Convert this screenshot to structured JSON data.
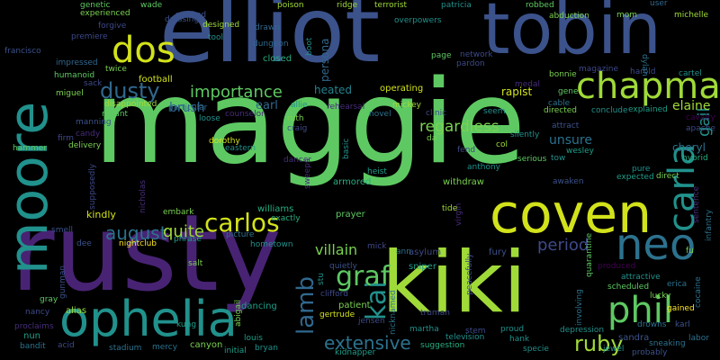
{
  "words": [
    {
      "text": "maggie",
      "color": "#5ec962"
    },
    {
      "text": "elliot",
      "color": "#3b528b"
    },
    {
      "text": "rusty",
      "color": "#482374"
    },
    {
      "text": "tobin",
      "color": "#3b528b"
    },
    {
      "text": "moore",
      "color": "#21918c"
    },
    {
      "text": "kiki",
      "color": "#a0da39"
    },
    {
      "text": "coven",
      "color": "#d2e21b"
    },
    {
      "text": "chapman",
      "color": "#a0da39"
    },
    {
      "text": "ophelia",
      "color": "#21918c"
    },
    {
      "text": "neo",
      "color": "#2c728e"
    },
    {
      "text": "phil",
      "color": "#5ec962"
    },
    {
      "text": "carla",
      "color": "#21918c"
    },
    {
      "text": "dos",
      "color": "#d2e21b"
    },
    {
      "text": "dusty",
      "color": "#31688e"
    },
    {
      "text": "importance",
      "color": "#5ec962"
    },
    {
      "text": "graf",
      "color": "#5ec962"
    },
    {
      "text": "carlos",
      "color": "#d2e21b"
    },
    {
      "text": "lamb",
      "color": "#31688e"
    },
    {
      "text": "kai",
      "color": "#21918c"
    },
    {
      "text": "extensive",
      "color": "#2c728e"
    },
    {
      "text": "ruby",
      "color": "#a0da39"
    },
    {
      "text": "august",
      "color": "#2c728e"
    },
    {
      "text": "quite",
      "color": "#a0da39"
    },
    {
      "text": "regardless",
      "color": "#7ad151"
    },
    {
      "text": "period",
      "color": "#3e4989"
    },
    {
      "text": "villain",
      "color": "#7ad151"
    },
    {
      "text": "gail",
      "color": "#21918c"
    },
    {
      "text": "elaine",
      "color": "#a0da39"
    },
    {
      "text": "unsure",
      "color": "#2c728e"
    },
    {
      "text": "cheryl",
      "color": "#2c728e"
    },
    {
      "text": "football",
      "color": "#d2e21b"
    },
    {
      "text": "rapist",
      "color": "#d2e21b"
    },
    {
      "text": "brush",
      "color": "#31688e"
    },
    {
      "text": "earl",
      "color": "#31688e"
    },
    {
      "text": "heated",
      "color": "#26828e"
    },
    {
      "text": "operating",
      "color": "#d2e21b"
    },
    {
      "text": "persona",
      "color": "#31688e"
    },
    {
      "text": "closed",
      "color": "#28ae80"
    },
    {
      "text": "kindly",
      "color": "#d2e21b"
    },
    {
      "text": "williams",
      "color": "#28ae80"
    },
    {
      "text": "nightclub",
      "color": "#fde725"
    },
    {
      "text": "phrase",
      "color": "#1f9e89"
    },
    {
      "text": "armored",
      "color": "#28ae80"
    },
    {
      "text": "withdraw",
      "color": "#7ad151"
    },
    {
      "text": "prayer",
      "color": "#5ec962"
    },
    {
      "text": "asylum",
      "color": "#3e4989"
    },
    {
      "text": "sniper",
      "color": "#1f9e89"
    },
    {
      "text": "fury",
      "color": "#3b528b"
    },
    {
      "text": "alias",
      "color": "#a0da39"
    },
    {
      "text": "nun",
      "color": "#1f9e89"
    },
    {
      "text": "patient",
      "color": "#7ad151"
    },
    {
      "text": "gertrude",
      "color": "#d2e21b"
    },
    {
      "text": "dancing",
      "color": "#1f9e89"
    },
    {
      "text": "canyon",
      "color": "#7ad151"
    },
    {
      "text": "kung",
      "color": "#1f9e89"
    },
    {
      "text": "martha",
      "color": "#21918c"
    },
    {
      "text": "suggestion",
      "color": "#28ae80"
    },
    {
      "text": "television",
      "color": "#21918c"
    },
    {
      "text": "depression",
      "color": "#21918c"
    },
    {
      "text": "specie",
      "color": "#21918c"
    },
    {
      "text": "sandra",
      "color": "#3b528b"
    },
    {
      "text": "scheduled",
      "color": "#5ec962"
    },
    {
      "text": "lucky",
      "color": "#7ad151"
    },
    {
      "text": "gained",
      "color": "#fde725"
    },
    {
      "text": "labor",
      "color": "#2c728e"
    },
    {
      "text": "erica",
      "color": "#2c728e"
    },
    {
      "text": "cocaine",
      "color": "#2c728e"
    },
    {
      "text": "attractive",
      "color": "#21918c"
    },
    {
      "text": "produced",
      "color": "#440154"
    },
    {
      "text": "hybrid",
      "color": "#28ae80"
    },
    {
      "text": "cavalry",
      "color": "#440154"
    },
    {
      "text": "apache",
      "color": "#3e4989"
    },
    {
      "text": "harold",
      "color": "#3e4989"
    },
    {
      "text": "cartel",
      "color": "#21918c"
    },
    {
      "text": "magazine",
      "color": "#3e4989"
    },
    {
      "text": "bonnie",
      "color": "#7ad151"
    },
    {
      "text": "explained",
      "color": "#1f9e89"
    },
    {
      "text": "conclude",
      "color": "#21918c"
    },
    {
      "text": "directed",
      "color": "#7ad151"
    },
    {
      "text": "attract",
      "color": "#3b528b"
    },
    {
      "text": "seem",
      "color": "#21918c"
    },
    {
      "text": "clinic",
      "color": "#3e4989"
    },
    {
      "text": "mickey",
      "color": "#a0da39"
    },
    {
      "text": "novel",
      "color": "#2c728e"
    },
    {
      "text": "rehearsal",
      "color": "#472d7b"
    },
    {
      "text": "allie",
      "color": "#21918c"
    },
    {
      "text": "ruth",
      "color": "#7ad151"
    },
    {
      "text": "craig",
      "color": "#3e4989"
    },
    {
      "text": "dorothy",
      "color": "#d2e21b"
    },
    {
      "text": "eastern",
      "color": "#21918c"
    },
    {
      "text": "loose",
      "color": "#21918c"
    },
    {
      "text": "particular",
      "color": "#31688e"
    },
    {
      "text": "disappointed",
      "color": "#a0da39"
    },
    {
      "text": "meant",
      "color": "#5ec962"
    },
    {
      "text": "manning",
      "color": "#3b528b"
    },
    {
      "text": "delivery",
      "color": "#7ad151"
    },
    {
      "text": "firm",
      "color": "#3e4989"
    },
    {
      "text": "hammer",
      "color": "#5ec962"
    },
    {
      "text": "sack",
      "color": "#3e4989"
    },
    {
      "text": "humanoid",
      "color": "#5ec962"
    },
    {
      "text": "impressed",
      "color": "#31688e"
    },
    {
      "text": "twice",
      "color": "#7ad151"
    },
    {
      "text": "miguel",
      "color": "#7ad151"
    },
    {
      "text": "francisco",
      "color": "#3b528b"
    },
    {
      "text": "premiere",
      "color": "#3e4989"
    },
    {
      "text": "forgive",
      "color": "#3e4989"
    },
    {
      "text": "experienced",
      "color": "#7ad151"
    },
    {
      "text": "genetic",
      "color": "#5ec962"
    },
    {
      "text": "wade",
      "color": "#5ec962"
    },
    {
      "text": "dressing",
      "color": "#3b528b"
    },
    {
      "text": "marked",
      "color": "#3b528b"
    },
    {
      "text": "designed",
      "color": "#a0da39"
    },
    {
      "text": "tool",
      "color": "#21918c"
    },
    {
      "text": "drawn",
      "color": "#31688e"
    },
    {
      "text": "dungeon",
      "color": "#31688e"
    },
    {
      "text": "poison",
      "color": "#a0da39"
    },
    {
      "text": "boot",
      "color": "#21918c"
    },
    {
      "text": "ridge",
      "color": "#a0da39"
    },
    {
      "text": "terrorist",
      "color": "#a0da39"
    },
    {
      "text": "patricia",
      "color": "#21918c"
    },
    {
      "text": "robbed",
      "color": "#5ec962"
    },
    {
      "text": "user",
      "color": "#31688e"
    },
    {
      "text": "overpowers",
      "color": "#21918c"
    },
    {
      "text": "abduction",
      "color": "#7ad151"
    },
    {
      "text": "mom",
      "color": "#7ad151"
    },
    {
      "text": "michelle",
      "color": "#a0da39"
    },
    {
      "text": "dylan",
      "color": "#2c728e"
    },
    {
      "text": "page",
      "color": "#5ec962"
    },
    {
      "text": "network",
      "color": "#3e4989"
    },
    {
      "text": "pardon",
      "color": "#3e4989"
    },
    {
      "text": "medal",
      "color": "#472d7b"
    },
    {
      "text": "gene",
      "color": "#5ec962"
    },
    {
      "text": "cable",
      "color": "#2c728e"
    },
    {
      "text": "silently",
      "color": "#21918c"
    },
    {
      "text": "col",
      "color": "#a0da39"
    },
    {
      "text": "serious",
      "color": "#5ec962"
    },
    {
      "text": "tow",
      "color": "#21918c"
    },
    {
      "text": "wesley",
      "color": "#1f9e89"
    },
    {
      "text": "awaken",
      "color": "#3b528b"
    },
    {
      "text": "expected",
      "color": "#1f9e89"
    },
    {
      "text": "direct",
      "color": "#7ad151"
    },
    {
      "text": "pure",
      "color": "#21918c"
    },
    {
      "text": "sentence",
      "color": "#472d7b"
    },
    {
      "text": "infantry",
      "color": "#2c728e"
    },
    {
      "text": "fu",
      "color": "#7ad151"
    },
    {
      "text": "quarantine",
      "color": "#5ec962"
    },
    {
      "text": "jewel",
      "color": "#21918c"
    },
    {
      "text": "drowns",
      "color": "#2c728e"
    },
    {
      "text": "probably",
      "color": "#3b528b"
    },
    {
      "text": "sneaking",
      "color": "#2c728e"
    },
    {
      "text": "karl",
      "color": "#3b528b"
    },
    {
      "text": "involving",
      "color": "#2c728e"
    },
    {
      "text": "proud",
      "color": "#21918c"
    },
    {
      "text": "hank",
      "color": "#21918c"
    },
    {
      "text": "peacefully",
      "color": "#3e4989"
    },
    {
      "text": "virgin",
      "color": "#472d7b"
    },
    {
      "text": "tide",
      "color": "#a0da39"
    },
    {
      "text": "fend",
      "color": "#3e4989"
    },
    {
      "text": "anthony",
      "color": "#21918c"
    },
    {
      "text": "da",
      "color": "#7ad151"
    },
    {
      "text": "heist",
      "color": "#1f9e89"
    },
    {
      "text": "basic",
      "color": "#21918c"
    },
    {
      "text": "sweeps",
      "color": "#472d7b"
    },
    {
      "text": "dancer",
      "color": "#472d7b"
    },
    {
      "text": "exactly",
      "color": "#28ae80"
    },
    {
      "text": "mick",
      "color": "#3e4989"
    },
    {
      "text": "ann",
      "color": "#2c728e"
    },
    {
      "text": "nicknamed",
      "color": "#2c728e"
    },
    {
      "text": "quietly",
      "color": "#3b528b"
    },
    {
      "text": "clifford",
      "color": "#3e4989"
    },
    {
      "text": "stu",
      "color": "#21918c"
    },
    {
      "text": "truman",
      "color": "#3e4989"
    },
    {
      "text": "stem",
      "color": "#3e4989"
    },
    {
      "text": "jensen",
      "color": "#3e4989"
    },
    {
      "text": "abigail",
      "color": "#7ad151"
    },
    {
      "text": "louis",
      "color": "#1f9e89"
    },
    {
      "text": "bryan",
      "color": "#21918c"
    },
    {
      "text": "initial",
      "color": "#1f9e89"
    },
    {
      "text": "kidnapper",
      "color": "#1f9e89"
    },
    {
      "text": "stadium",
      "color": "#2c728e"
    },
    {
      "text": "mercy",
      "color": "#2c728e"
    },
    {
      "text": "acid",
      "color": "#3e4989"
    },
    {
      "text": "bandit",
      "color": "#2c728e"
    },
    {
      "text": "proclaims",
      "color": "#472d7b"
    },
    {
      "text": "nancy",
      "color": "#3e4989"
    },
    {
      "text": "gray",
      "color": "#5ec962"
    },
    {
      "text": "gunman",
      "color": "#3b528b"
    },
    {
      "text": "smell",
      "color": "#3b528b"
    },
    {
      "text": "dee",
      "color": "#3b528b"
    },
    {
      "text": "salt",
      "color": "#7ad151"
    },
    {
      "text": "picture",
      "color": "#2c728e"
    },
    {
      "text": "hometown",
      "color": "#21918c"
    },
    {
      "text": "embark",
      "color": "#7ad151"
    },
    {
      "text": "nicholas",
      "color": "#472d7b"
    },
    {
      "text": "supposedly",
      "color": "#3e4989"
    },
    {
      "text": "candy",
      "color": "#472d7b"
    },
    {
      "text": "counselor",
      "color": "#472d7b"
    }
  ]
}
